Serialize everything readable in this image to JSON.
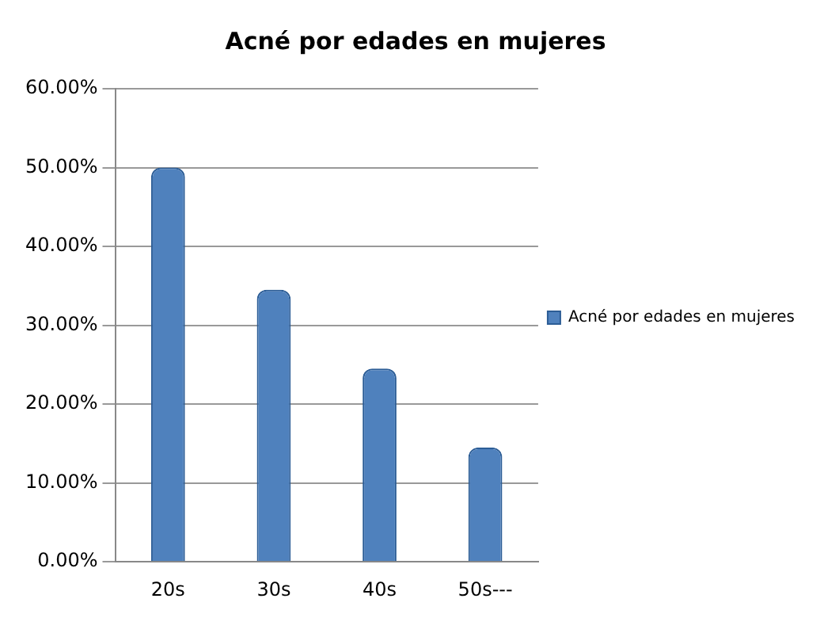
{
  "chart_data": {
    "type": "bar",
    "title": "Acné por edades en mujeres",
    "categories": [
      "20s",
      "30s",
      "40s",
      "50s---"
    ],
    "series": [
      {
        "name": "Acné por edades en mujeres",
        "color": "#4f81bd",
        "values": [
          50,
          34.5,
          24.5,
          14.5
        ]
      }
    ],
    "ylim": [
      0,
      60
    ],
    "yticks": [
      {
        "value": 0,
        "label": "0.00%"
      },
      {
        "value": 10,
        "label": "10.00%"
      },
      {
        "value": 20,
        "label": "20.00%"
      },
      {
        "value": 30,
        "label": "30.00%"
      },
      {
        "value": 40,
        "label": "40.00%"
      },
      {
        "value": 50,
        "label": "50.00%"
      },
      {
        "value": 60,
        "label": "60.00%"
      }
    ],
    "grid": "y",
    "legend": "right"
  }
}
